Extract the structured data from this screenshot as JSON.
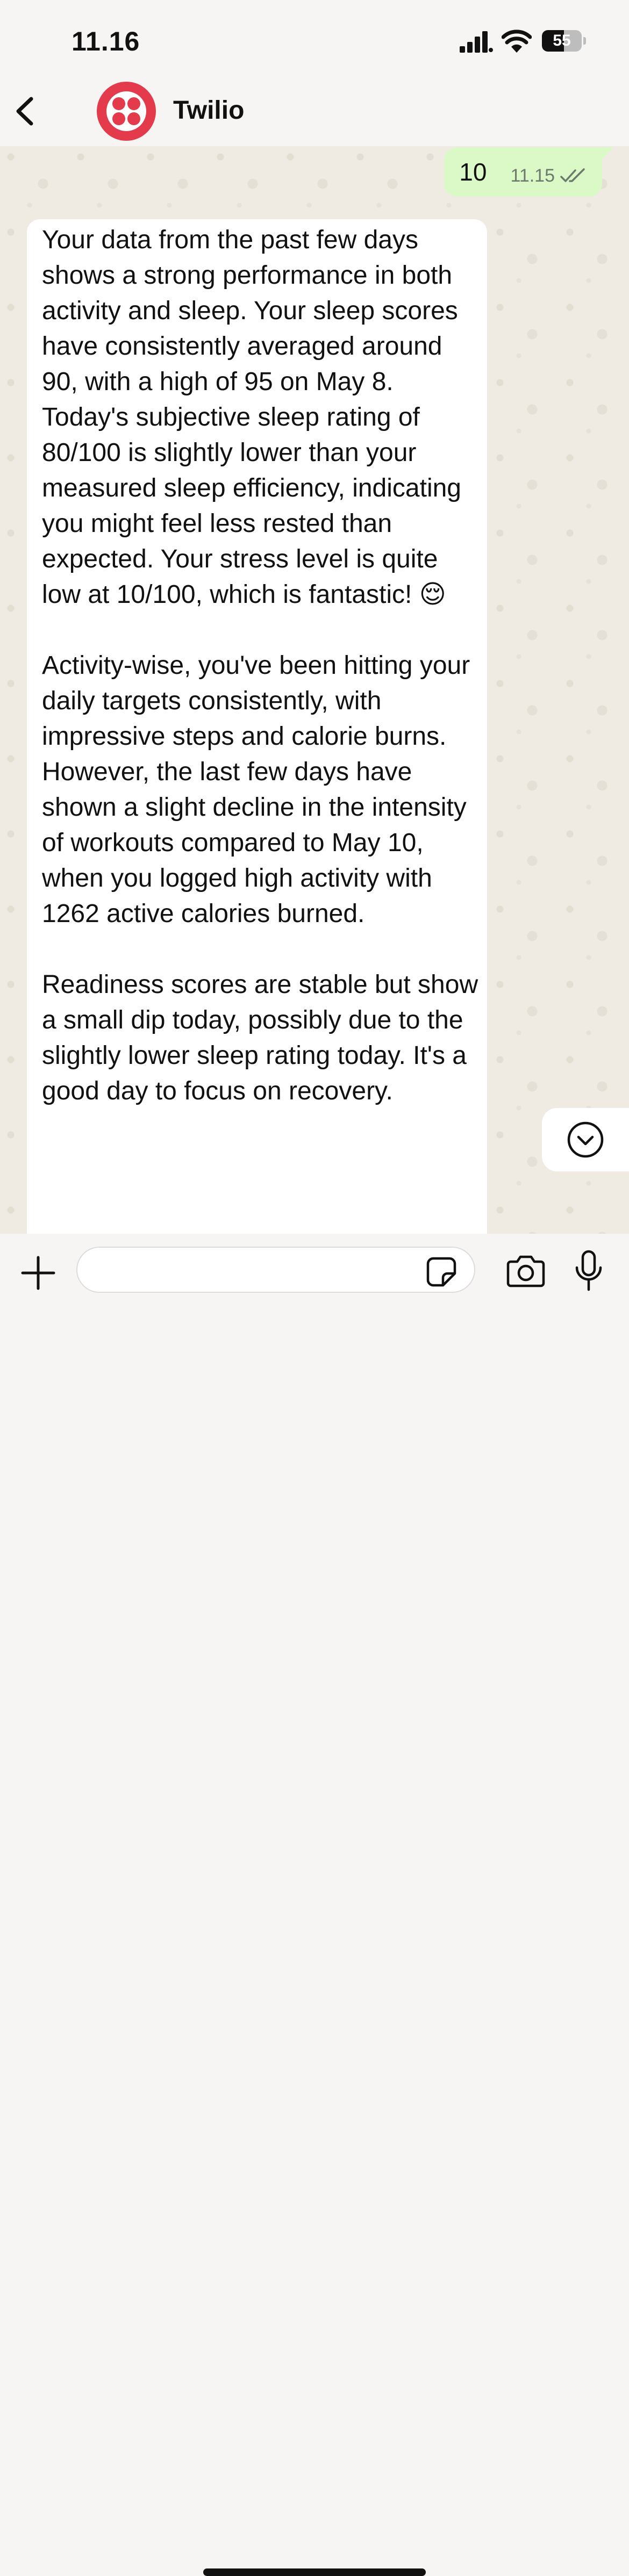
{
  "status_bar": {
    "time": "11.16",
    "battery": "55",
    "battery_level": 0.55
  },
  "header": {
    "contact_name": "Twilio"
  },
  "messages": [
    {
      "direction": "outgoing",
      "text": "10",
      "time": "11.15",
      "status": "read"
    },
    {
      "direction": "incoming",
      "text": "Your data from the past few days shows a strong performance in both activity and sleep. Your sleep scores have consistently averaged around 90, with a high of 95 on May 8. Today's subjective sleep rating of 80/100 is slightly lower than your measured sleep efficiency, indicating you might feel less rested than expected. Your stress level is quite low at 10/100, which is fantastic! 😌\n\nActivity-wise, you've been hitting your daily targets consistently, with impressive steps and calorie burns. However, the last few days have shown a slight decline in the intensity of workouts compared to May 10, when you logged high activity with 1262 active calories burned.\n\nReadiness scores are stable but show a small dip today, possibly due to the slightly lower sleep rating today. It's a good day to focus on recovery."
    }
  ],
  "input": {
    "value": "",
    "placeholder": ""
  },
  "colors": {
    "outgoing_bubble": "#dbf8c7",
    "incoming_bubble": "#ffffff",
    "avatar": "#e33a4c",
    "chat_background": "#efeae2"
  },
  "icons": {
    "back": "chevron-left-icon",
    "scroll_down": "chevron-down-circle-icon",
    "plus": "plus-icon",
    "sticker": "sticker-icon",
    "camera": "camera-icon",
    "mic": "microphone-icon",
    "read_receipt": "double-check-icon"
  }
}
